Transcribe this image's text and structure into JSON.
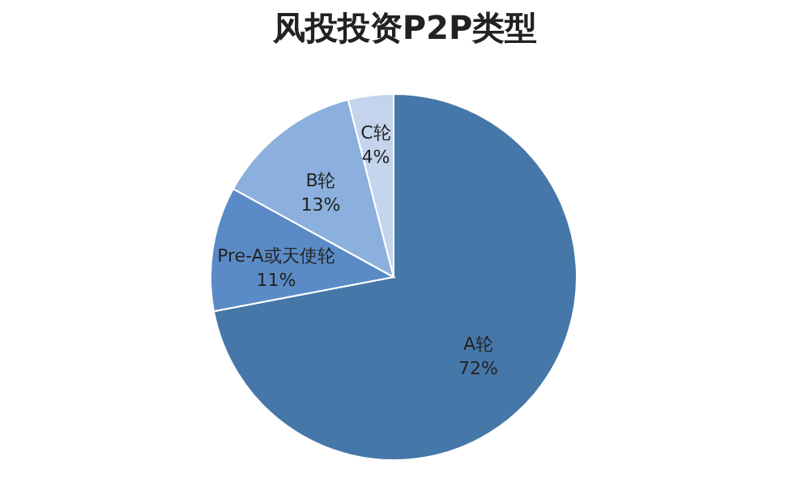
{
  "chart_data": {
    "type": "pie",
    "title": "风投投资P2P类型",
    "categories": [
      "A轮",
      "Pre-A或天使轮",
      "B轮",
      "C轮"
    ],
    "values": [
      72,
      11,
      13,
      4
    ],
    "colors": [
      "#4677a9",
      "#5b8bc6",
      "#8cb0dd",
      "#c3d4ec"
    ],
    "value_labels": [
      "72%",
      "11%",
      "13%",
      "4%"
    ],
    "legend": false
  }
}
